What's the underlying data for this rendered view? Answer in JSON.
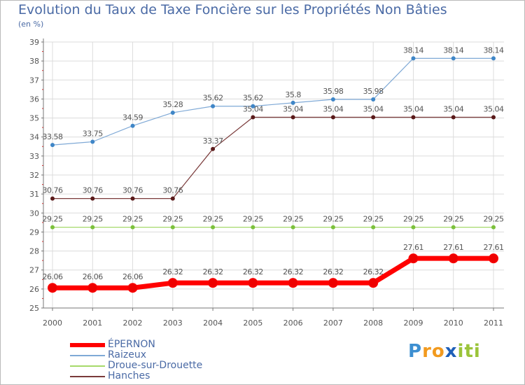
{
  "title": "Evolution du Taux de Taxe Foncière sur les Propriétés Non Bâties",
  "subtitle": "(en %)",
  "chart_data": {
    "type": "line",
    "title": "Evolution du Taux de Taxe Foncière sur les Propriétés Non Bâties",
    "ylabel": "(en %)",
    "xlabel": "",
    "ylim": [
      25,
      39
    ],
    "y_ticks": [
      "25",
      "26",
      "27",
      "28",
      "29",
      "30",
      "31",
      "32",
      "33",
      "34",
      "35",
      "36",
      "37",
      "38",
      "39"
    ],
    "grid": true,
    "legend_position": "bottom-left",
    "categories": [
      "2000",
      "2001",
      "2002",
      "2003",
      "2004",
      "2005",
      "2006",
      "2007",
      "2008",
      "2009",
      "2010",
      "2011"
    ],
    "series": [
      {
        "name": "Raizeux",
        "color": "#7fa9d6",
        "marker_color": "#3f86c7",
        "values": [
          33.58,
          33.75,
          34.59,
          35.28,
          35.62,
          35.62,
          35.8,
          35.98,
          35.98,
          38.14,
          38.14,
          38.14
        ],
        "labels": [
          "33.58",
          "33.75",
          "34.59",
          "35.28",
          "35.62",
          "35.62",
          "35.8",
          "35.98",
          "35.98",
          "38.14",
          "38.14",
          "38.14"
        ]
      },
      {
        "name": "Hanches",
        "color": "#7a3a3a",
        "marker_color": "#5a1a1a",
        "values": [
          30.76,
          30.76,
          30.76,
          30.76,
          33.37,
          35.04,
          35.04,
          35.04,
          35.04,
          35.04,
          35.04,
          35.04
        ],
        "labels": [
          "30.76",
          "30.76",
          "30.76",
          "30.76",
          "33.37",
          "35.04",
          "35.04",
          "35.04",
          "35.04",
          "35.04",
          "35.04",
          "35.04"
        ]
      },
      {
        "name": "Droue-sur-Drouette",
        "color": "#a6d96a",
        "marker_color": "#7cc13c",
        "values": [
          29.25,
          29.25,
          29.25,
          29.25,
          29.25,
          29.25,
          29.25,
          29.25,
          29.25,
          29.25,
          29.25,
          29.25
        ],
        "labels": [
          "29.25",
          "29.25",
          "29.25",
          "29.25",
          "29.25",
          "29.25",
          "29.25",
          "29.25",
          "29.25",
          "29.25",
          "29.25",
          "29.25"
        ]
      },
      {
        "name": "ÉPERNON",
        "color": "#ff0000",
        "marker_color": "#ee0000",
        "values": [
          26.06,
          26.06,
          26.06,
          26.32,
          26.32,
          26.32,
          26.32,
          26.32,
          26.32,
          27.61,
          27.61,
          27.61
        ],
        "labels": [
          "26.06",
          "26.06",
          "26.06",
          "26.32",
          "26.32",
          "26.32",
          "26.32",
          "26.32",
          "26.32",
          "27.61",
          "27.61",
          "27.61"
        ]
      }
    ]
  },
  "legend": [
    {
      "name": "ÉPERNON",
      "color": "#ff0000"
    },
    {
      "name": "Raizeux",
      "color": "#7fa9d6"
    },
    {
      "name": "Droue-sur-Drouette",
      "color": "#a6d96a"
    },
    {
      "name": "Hanches",
      "color": "#7a3a3a"
    }
  ],
  "brand": {
    "letters": [
      "P",
      "r",
      "o",
      "x",
      "i",
      "t",
      "i"
    ],
    "colors": [
      "#3d8fd1",
      "#f29a1e",
      "#f29a1e",
      "#1e5fb8",
      "#9bc43a",
      "#9bc43a",
      "#9bc43a"
    ]
  }
}
